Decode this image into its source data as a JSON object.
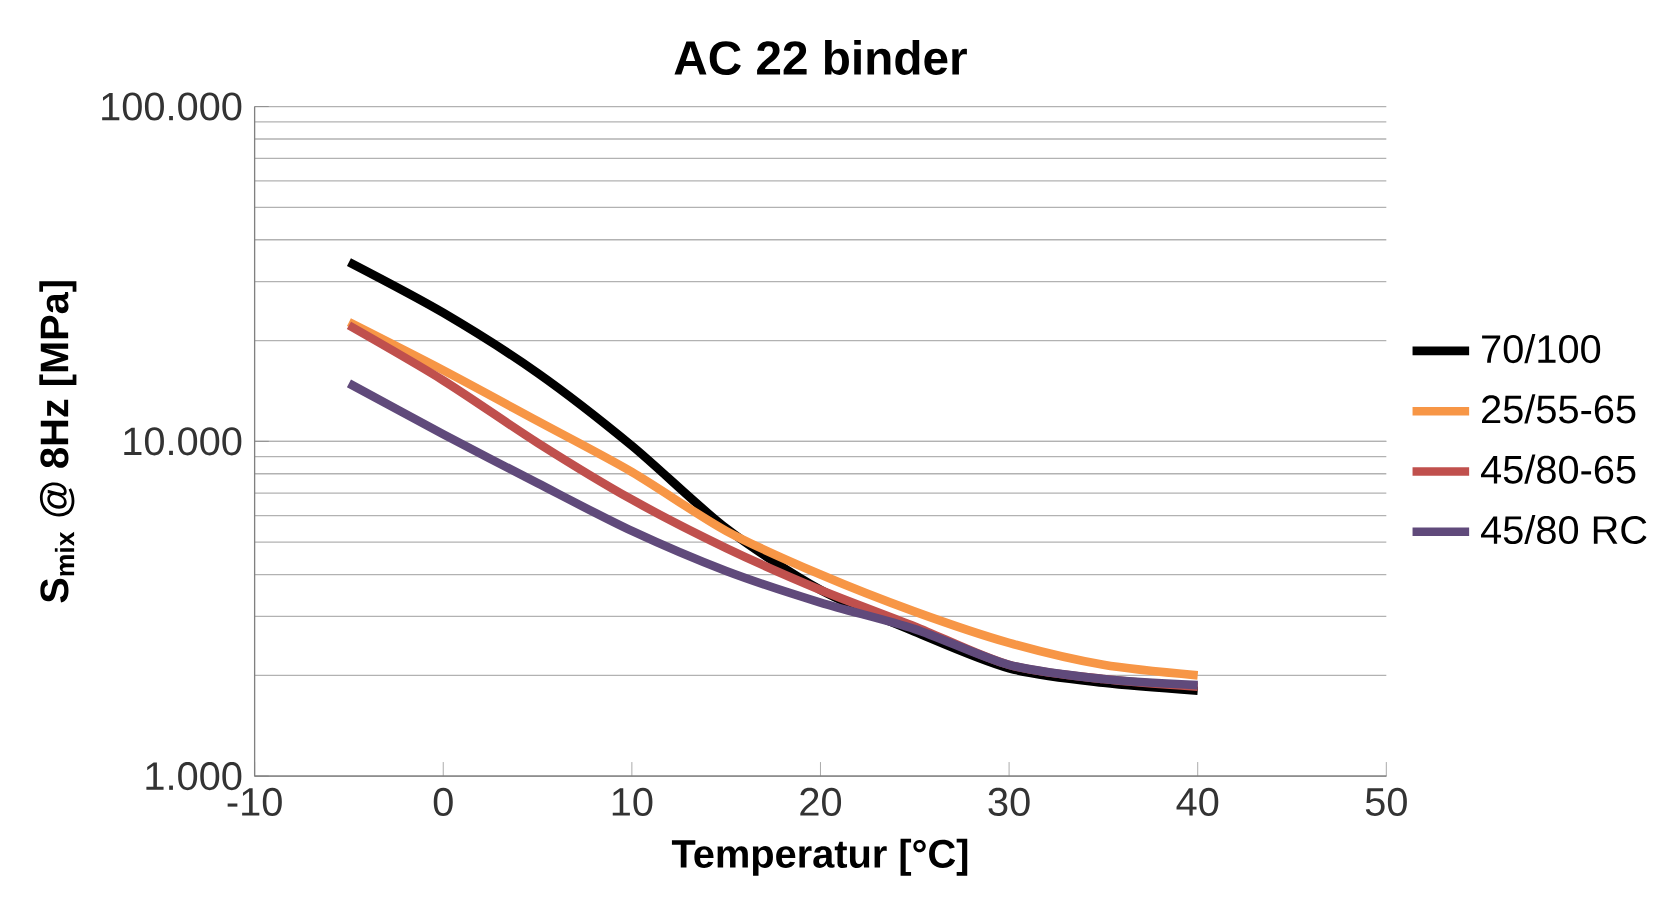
{
  "chart_data": {
    "type": "line",
    "title": "AC 22 binder",
    "xlabel": "Temperatur [°C]",
    "ylabel": "S$_{mix}$ @ 8Hz [MPa]",
    "x": [
      -5,
      0,
      5,
      10,
      15,
      20,
      25,
      30,
      35,
      40
    ],
    "series": [
      {
        "name": "70/100",
        "color": "#000000",
        "values": [
          34300,
          24200,
          16000,
          9700,
          5500,
          3600,
          2700,
          2100,
          1900,
          1800
        ]
      },
      {
        "name": "25/55-65",
        "color": "#f79646",
        "values": [
          22700,
          16300,
          11500,
          8100,
          5400,
          4000,
          3100,
          2500,
          2150,
          2000
        ]
      },
      {
        "name": "45/80-65",
        "color": "#c0504d",
        "values": [
          22200,
          15200,
          9900,
          6700,
          4800,
          3600,
          2800,
          2150,
          1950,
          1850
        ]
      },
      {
        "name": "45/80 RC",
        "color": "#604a7b",
        "values": [
          14900,
          10500,
          7500,
          5400,
          4100,
          3300,
          2750,
          2150,
          1950,
          1870
        ]
      }
    ],
    "xlim": [
      -10,
      50
    ],
    "xticks": [
      -10,
      0,
      10,
      20,
      30,
      40,
      50
    ],
    "ylim": [
      1000,
      100000
    ],
    "yticks": [
      {
        "value": 1000,
        "label": "1.000"
      },
      {
        "value": 10000,
        "label": "10.000"
      },
      {
        "value": 100000,
        "label": "100.000"
      }
    ],
    "log": "y",
    "grid": "y",
    "legend": "right",
    "marker": "none",
    "line_style": "solid"
  }
}
